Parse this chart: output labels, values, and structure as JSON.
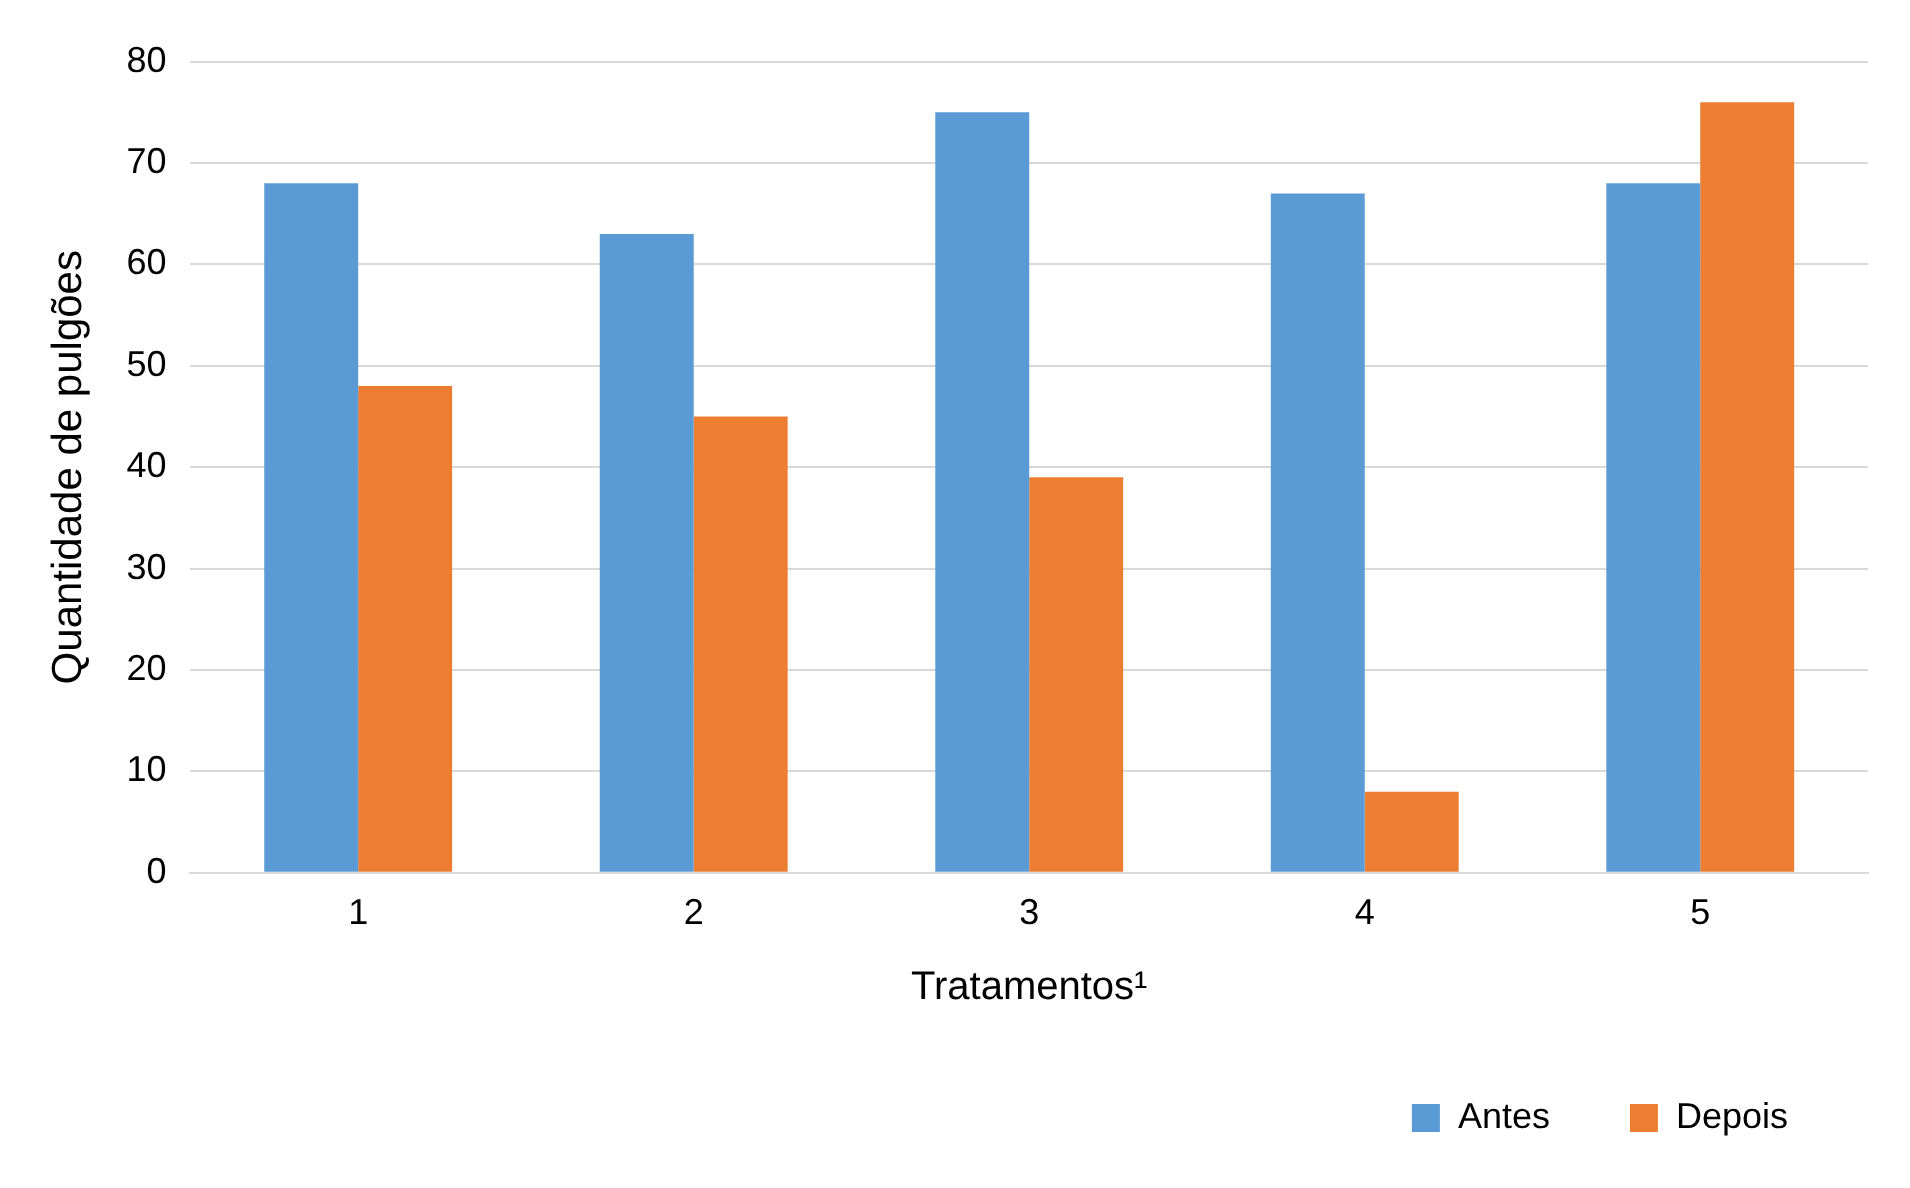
{
  "chart_data": {
    "type": "bar",
    "xlabel": "Tratamentos¹",
    "ylabel": "Quantidade de pulgões",
    "categories": [
      "1",
      "2",
      "3",
      "4",
      "5"
    ],
    "series": [
      {
        "name": "Antes",
        "color": "#5b9bd5",
        "values": [
          68,
          63,
          75,
          67,
          68
        ]
      },
      {
        "name": "Depois",
        "color": "#ed7d31",
        "values": [
          48,
          45,
          39,
          8,
          76
        ]
      }
    ],
    "ylim": [
      0,
      80
    ],
    "yticks": [
      0,
      10,
      20,
      30,
      40,
      50,
      60,
      70,
      80
    ],
    "grid": "y",
    "legend": "bottom right"
  }
}
